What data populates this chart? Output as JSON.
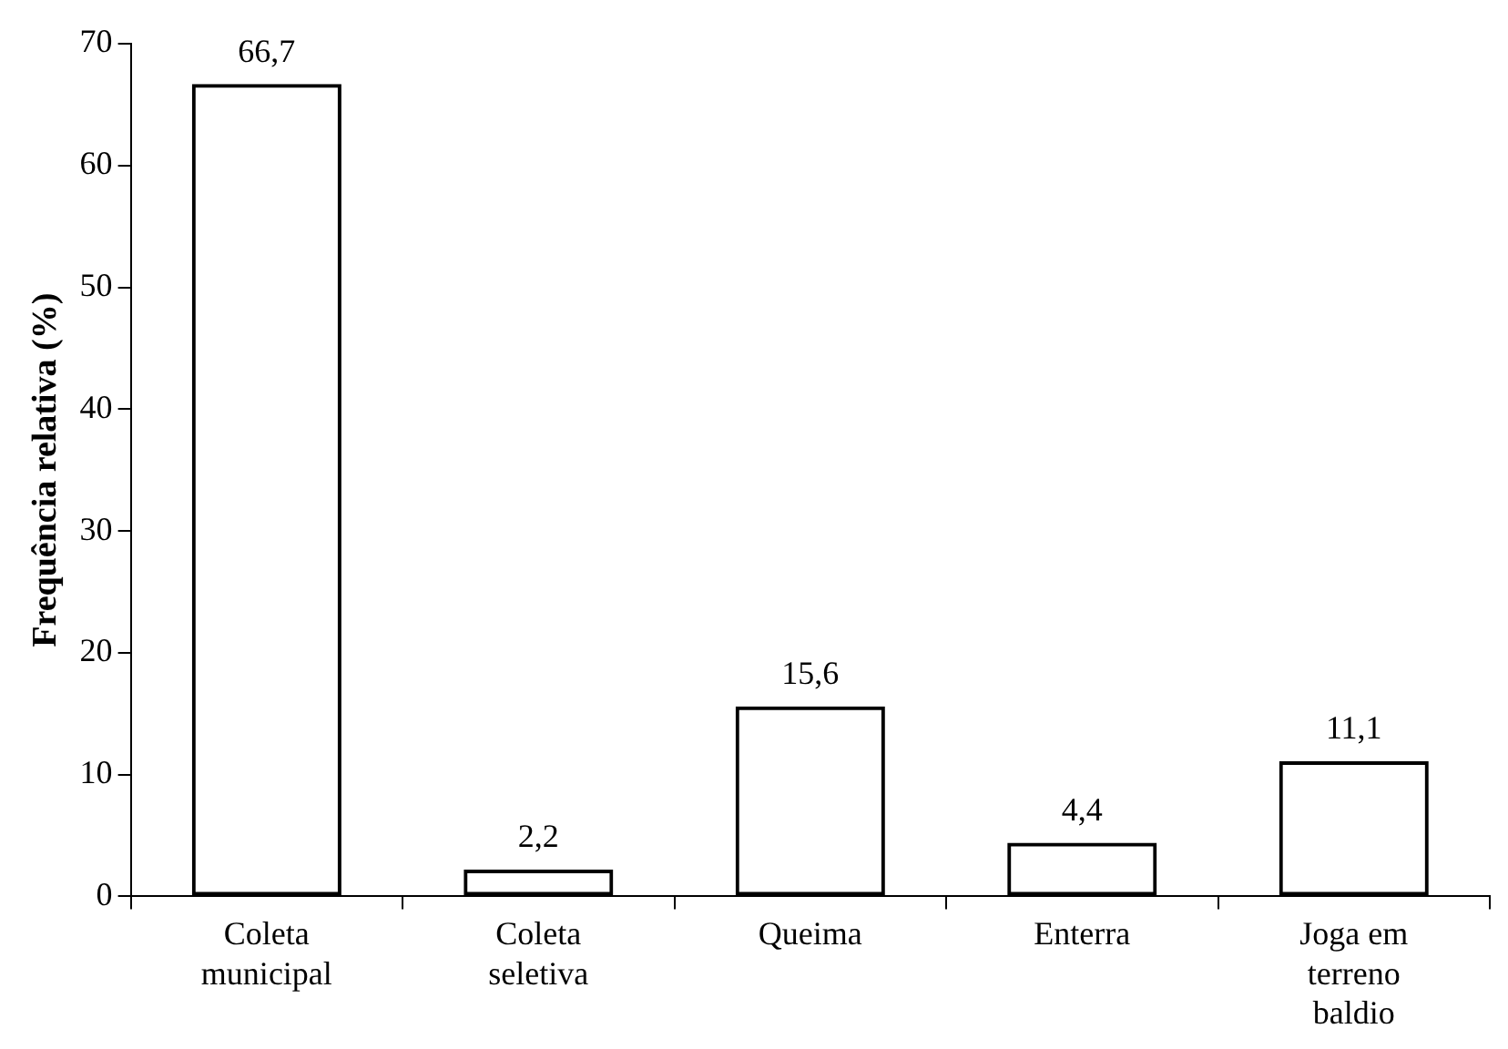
{
  "chart_data": {
    "type": "bar",
    "ylabel": "Frequência relativa (%)",
    "categories": [
      "Coleta municipal",
      "Coleta seletiva",
      "Queima",
      "Enterra",
      "Joga em terreno baldio"
    ],
    "values": [
      66.7,
      2.2,
      15.6,
      4.4,
      11.1
    ],
    "value_labels": [
      "66,7",
      "2,2",
      "15,6",
      "4,4",
      "11,1"
    ],
    "color": "#000000",
    "ylim": [
      0,
      70
    ],
    "yticks": [
      0,
      10,
      20,
      30,
      40,
      50,
      60,
      70
    ],
    "grid": false,
    "legend": false
  }
}
